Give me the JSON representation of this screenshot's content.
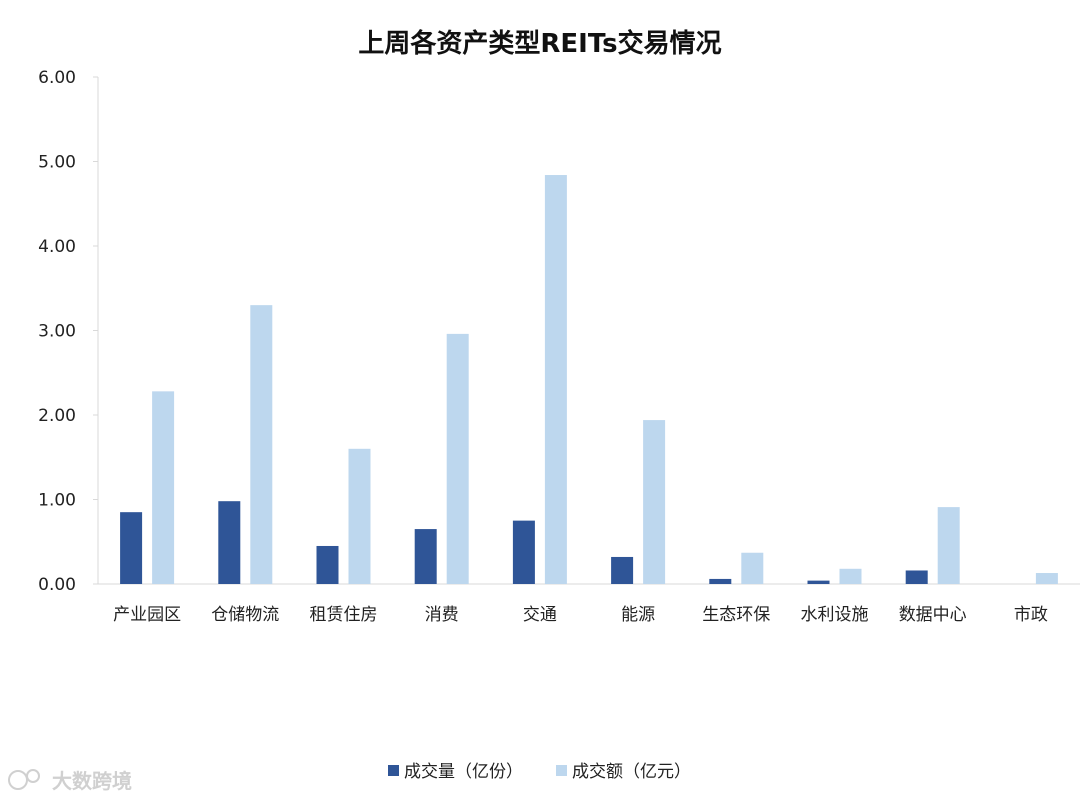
{
  "chart_data": {
    "type": "bar",
    "title": "上周各资产类型REITs交易情况",
    "categories": [
      "产业园区",
      "仓储物流",
      "租赁住房",
      "消费",
      "交通",
      "能源",
      "生态环保",
      "水利设施",
      "数据中心",
      "市政"
    ],
    "series": [
      {
        "name": "成交量（亿份）",
        "color": "#2F5597",
        "values": [
          0.85,
          0.98,
          0.45,
          0.65,
          0.75,
          0.32,
          0.06,
          0.04,
          0.16,
          0.0
        ]
      },
      {
        "name": "成交额（亿元）",
        "color": "#BDD7EE",
        "values": [
          2.28,
          3.3,
          1.6,
          2.96,
          4.84,
          1.94,
          0.37,
          0.18,
          0.91,
          0.13
        ]
      }
    ],
    "ylim": [
      0,
      6
    ],
    "yticks": [
      "0.00",
      "1.00",
      "2.00",
      "3.00",
      "4.00",
      "5.00",
      "6.00"
    ],
    "legend_position": "bottom",
    "grid": false
  },
  "watermark": {
    "text": "大数跨境"
  }
}
